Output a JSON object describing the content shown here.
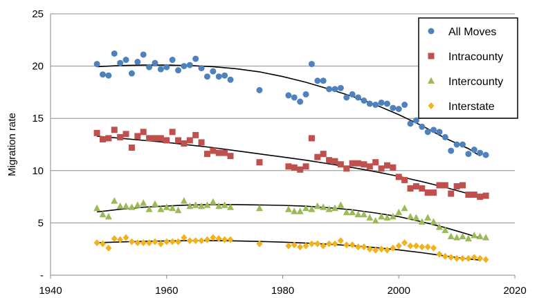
{
  "chart_data": {
    "type": "scatter",
    "title": "",
    "xlabel": "",
    "ylabel": "Migration rate",
    "xlim": [
      1940,
      2020
    ],
    "ylim": [
      0,
      25
    ],
    "xticks": [
      1940,
      1960,
      1980,
      2000,
      2020
    ],
    "yticks": [
      0,
      5,
      10,
      15,
      20,
      25
    ],
    "ytick_labels": [
      "-",
      "5",
      "10",
      "15",
      "20",
      "25"
    ],
    "grid": "horizontal",
    "legend_position": "top-right",
    "trendlines": true,
    "series": [
      {
        "name": "All Moves",
        "color": "#4f81bd",
        "marker": "circle",
        "points": [
          [
            1948,
            20.2
          ],
          [
            1949,
            19.2
          ],
          [
            1950,
            19.1
          ],
          [
            1951,
            21.2
          ],
          [
            1952,
            20.3
          ],
          [
            1953,
            20.6
          ],
          [
            1954,
            19.3
          ],
          [
            1955,
            20.4
          ],
          [
            1956,
            21.1
          ],
          [
            1957,
            19.9
          ],
          [
            1958,
            20.3
          ],
          [
            1959,
            19.7
          ],
          [
            1960,
            19.9
          ],
          [
            1961,
            20.6
          ],
          [
            1962,
            19.6
          ],
          [
            1963,
            20.0
          ],
          [
            1964,
            20.1
          ],
          [
            1965,
            20.7
          ],
          [
            1966,
            19.8
          ],
          [
            1967,
            19.0
          ],
          [
            1968,
            19.5
          ],
          [
            1969,
            19.0
          ],
          [
            1970,
            19.1
          ],
          [
            1971,
            18.7
          ],
          [
            1976,
            17.7
          ],
          [
            1981,
            17.2
          ],
          [
            1982,
            17.0
          ],
          [
            1983,
            16.6
          ],
          [
            1984,
            17.3
          ],
          [
            1985,
            20.2
          ],
          [
            1986,
            18.6
          ],
          [
            1987,
            18.6
          ],
          [
            1988,
            17.8
          ],
          [
            1989,
            17.8
          ],
          [
            1990,
            17.9
          ],
          [
            1991,
            17.0
          ],
          [
            1992,
            17.3
          ],
          [
            1993,
            17.0
          ],
          [
            1994,
            16.7
          ],
          [
            1995,
            16.4
          ],
          [
            1996,
            16.3
          ],
          [
            1997,
            16.5
          ],
          [
            1998,
            16.4
          ],
          [
            1999,
            16.0
          ],
          [
            2000,
            15.9
          ],
          [
            2001,
            16.3
          ],
          [
            2002,
            14.5
          ],
          [
            2003,
            14.8
          ],
          [
            2004,
            14.2
          ],
          [
            2005,
            13.7
          ],
          [
            2006,
            13.9
          ],
          [
            2007,
            13.7
          ],
          [
            2008,
            13.2
          ],
          [
            2009,
            11.9
          ],
          [
            2010,
            12.5
          ],
          [
            2011,
            12.5
          ],
          [
            2012,
            11.6
          ],
          [
            2013,
            12.0
          ],
          [
            2014,
            11.7
          ],
          [
            2015,
            11.5
          ]
        ],
        "trend": [
          [
            1948,
            19.95
          ],
          [
            1952,
            20.05
          ],
          [
            1956,
            20.1
          ],
          [
            1960,
            20.1
          ],
          [
            1964,
            20.05
          ],
          [
            1968,
            19.95
          ],
          [
            1972,
            19.75
          ],
          [
            1976,
            19.45
          ],
          [
            1980,
            19.0
          ],
          [
            1984,
            18.45
          ],
          [
            1988,
            17.8
          ],
          [
            1992,
            17.1
          ],
          [
            1996,
            16.3
          ],
          [
            2000,
            15.35
          ],
          [
            2004,
            14.3
          ],
          [
            2008,
            13.1
          ],
          [
            2012,
            12.1
          ],
          [
            2014,
            11.4
          ]
        ]
      },
      {
        "name": "Intracounty",
        "color": "#c0504d",
        "marker": "square",
        "points": [
          [
            1948,
            13.6
          ],
          [
            1949,
            13.0
          ],
          [
            1950,
            13.1
          ],
          [
            1951,
            13.9
          ],
          [
            1952,
            13.2
          ],
          [
            1953,
            13.5
          ],
          [
            1954,
            12.2
          ],
          [
            1955,
            13.3
          ],
          [
            1956,
            13.7
          ],
          [
            1957,
            13.1
          ],
          [
            1958,
            13.1
          ],
          [
            1959,
            13.1
          ],
          [
            1960,
            12.9
          ],
          [
            1961,
            13.7
          ],
          [
            1962,
            12.9
          ],
          [
            1963,
            12.6
          ],
          [
            1964,
            12.9
          ],
          [
            1965,
            13.4
          ],
          [
            1966,
            12.7
          ],
          [
            1967,
            11.6
          ],
          [
            1968,
            11.9
          ],
          [
            1969,
            11.7
          ],
          [
            1970,
            11.7
          ],
          [
            1971,
            11.4
          ],
          [
            1976,
            10.8
          ],
          [
            1981,
            10.4
          ],
          [
            1982,
            10.3
          ],
          [
            1983,
            10.1
          ],
          [
            1984,
            10.4
          ],
          [
            1985,
            13.1
          ],
          [
            1986,
            11.3
          ],
          [
            1987,
            11.6
          ],
          [
            1988,
            11.0
          ],
          [
            1989,
            10.9
          ],
          [
            1990,
            10.6
          ],
          [
            1991,
            10.2
          ],
          [
            1992,
            10.7
          ],
          [
            1993,
            10.7
          ],
          [
            1994,
            10.6
          ],
          [
            1995,
            10.4
          ],
          [
            1996,
            10.8
          ],
          [
            1997,
            10.2
          ],
          [
            1998,
            10.5
          ],
          [
            1999,
            10.3
          ],
          [
            2000,
            9.4
          ],
          [
            2001,
            9.1
          ],
          [
            2002,
            8.3
          ],
          [
            2003,
            8.5
          ],
          [
            2004,
            8.3
          ],
          [
            2005,
            7.9
          ],
          [
            2006,
            7.9
          ],
          [
            2007,
            8.6
          ],
          [
            2008,
            8.6
          ],
          [
            2009,
            7.8
          ],
          [
            2010,
            8.5
          ],
          [
            2011,
            8.6
          ],
          [
            2012,
            7.7
          ],
          [
            2013,
            7.7
          ],
          [
            2014,
            7.5
          ],
          [
            2015,
            7.6
          ]
        ],
        "trend": [
          [
            1948,
            13.3
          ],
          [
            1952,
            13.1
          ],
          [
            1956,
            12.9
          ],
          [
            1960,
            12.7
          ],
          [
            1964,
            12.45
          ],
          [
            1968,
            12.2
          ],
          [
            1972,
            11.9
          ],
          [
            1976,
            11.6
          ],
          [
            1980,
            11.3
          ],
          [
            1984,
            11.0
          ],
          [
            1988,
            10.65
          ],
          [
            1992,
            10.3
          ],
          [
            1996,
            9.9
          ],
          [
            2000,
            9.45
          ],
          [
            2004,
            8.95
          ],
          [
            2008,
            8.4
          ],
          [
            2012,
            7.8
          ],
          [
            2014,
            7.45
          ]
        ]
      },
      {
        "name": "Intercounty",
        "color": "#9bbb59",
        "marker": "triangle",
        "points": [
          [
            1948,
            6.4
          ],
          [
            1949,
            5.8
          ],
          [
            1950,
            5.6
          ],
          [
            1951,
            7.1
          ],
          [
            1952,
            6.6
          ],
          [
            1953,
            6.6
          ],
          [
            1954,
            6.5
          ],
          [
            1955,
            6.7
          ],
          [
            1956,
            6.9
          ],
          [
            1957,
            6.3
          ],
          [
            1958,
            6.8
          ],
          [
            1959,
            6.3
          ],
          [
            1960,
            6.5
          ],
          [
            1961,
            6.4
          ],
          [
            1962,
            6.2
          ],
          [
            1963,
            7.1
          ],
          [
            1964,
            6.6
          ],
          [
            1965,
            6.7
          ],
          [
            1966,
            6.6
          ],
          [
            1967,
            6.7
          ],
          [
            1968,
            7.0
          ],
          [
            1969,
            6.6
          ],
          [
            1970,
            6.7
          ],
          [
            1971,
            6.5
          ],
          [
            1976,
            6.4
          ],
          [
            1981,
            6.3
          ],
          [
            1982,
            6.1
          ],
          [
            1983,
            6.1
          ],
          [
            1984,
            6.4
          ],
          [
            1985,
            6.3
          ],
          [
            1986,
            6.6
          ],
          [
            1987,
            6.5
          ],
          [
            1988,
            6.3
          ],
          [
            1989,
            6.4
          ],
          [
            1990,
            6.7
          ],
          [
            1991,
            6.0
          ],
          [
            1992,
            6.0
          ],
          [
            1993,
            5.8
          ],
          [
            1994,
            5.8
          ],
          [
            1995,
            5.5
          ],
          [
            1996,
            5.2
          ],
          [
            1997,
            5.6
          ],
          [
            1998,
            5.5
          ],
          [
            1999,
            5.6
          ],
          [
            2000,
            6.0
          ],
          [
            2001,
            6.4
          ],
          [
            2002,
            5.6
          ],
          [
            2003,
            5.5
          ],
          [
            2004,
            5.1
          ],
          [
            2005,
            5.5
          ],
          [
            2006,
            5.1
          ],
          [
            2007,
            4.6
          ],
          [
            2008,
            4.3
          ],
          [
            2009,
            3.7
          ],
          [
            2010,
            3.6
          ],
          [
            2011,
            3.7
          ],
          [
            2012,
            3.5
          ],
          [
            2013,
            3.8
          ],
          [
            2014,
            3.7
          ],
          [
            2015,
            3.6
          ]
        ],
        "trend": [
          [
            1948,
            6.05
          ],
          [
            1952,
            6.3
          ],
          [
            1956,
            6.5
          ],
          [
            1960,
            6.62
          ],
          [
            1964,
            6.72
          ],
          [
            1968,
            6.75
          ],
          [
            1972,
            6.75
          ],
          [
            1976,
            6.72
          ],
          [
            1980,
            6.68
          ],
          [
            1984,
            6.6
          ],
          [
            1988,
            6.45
          ],
          [
            1992,
            6.25
          ],
          [
            1996,
            5.95
          ],
          [
            2000,
            5.6
          ],
          [
            2004,
            5.1
          ],
          [
            2008,
            4.55
          ],
          [
            2012,
            3.9
          ],
          [
            2014,
            3.55
          ]
        ]
      },
      {
        "name": "Interstate",
        "color": "#f2b21e",
        "marker": "diamond",
        "points": [
          [
            1948,
            3.1
          ],
          [
            1949,
            3.0
          ],
          [
            1950,
            2.6
          ],
          [
            1951,
            3.5
          ],
          [
            1952,
            3.4
          ],
          [
            1953,
            3.6
          ],
          [
            1954,
            3.2
          ],
          [
            1955,
            3.1
          ],
          [
            1956,
            3.1
          ],
          [
            1957,
            3.1
          ],
          [
            1958,
            3.2
          ],
          [
            1959,
            3.0
          ],
          [
            1960,
            3.2
          ],
          [
            1961,
            3.2
          ],
          [
            1962,
            3.2
          ],
          [
            1963,
            3.6
          ],
          [
            1964,
            3.3
          ],
          [
            1965,
            3.3
          ],
          [
            1966,
            3.3
          ],
          [
            1967,
            3.4
          ],
          [
            1968,
            3.6
          ],
          [
            1969,
            3.5
          ],
          [
            1970,
            3.4
          ],
          [
            1971,
            3.4
          ],
          [
            1976,
            3.0
          ],
          [
            1981,
            2.8
          ],
          [
            1982,
            2.9
          ],
          [
            1983,
            2.7
          ],
          [
            1984,
            2.8
          ],
          [
            1985,
            3.0
          ],
          [
            1986,
            3.0
          ],
          [
            1987,
            2.8
          ],
          [
            1988,
            3.0
          ],
          [
            1989,
            3.0
          ],
          [
            1990,
            3.3
          ],
          [
            1991,
            2.9
          ],
          [
            1992,
            2.9
          ],
          [
            1993,
            2.7
          ],
          [
            1994,
            2.7
          ],
          [
            1995,
            2.5
          ],
          [
            1996,
            2.4
          ],
          [
            1997,
            2.5
          ],
          [
            1998,
            2.4
          ],
          [
            1999,
            2.6
          ],
          [
            2000,
            2.8
          ],
          [
            2001,
            3.1
          ],
          [
            2002,
            2.8
          ],
          [
            2003,
            2.8
          ],
          [
            2004,
            2.7
          ],
          [
            2005,
            2.7
          ],
          [
            2006,
            2.6
          ],
          [
            2007,
            2.0
          ],
          [
            2008,
            1.8
          ],
          [
            2009,
            1.7
          ],
          [
            2010,
            1.6
          ],
          [
            2011,
            1.6
          ],
          [
            2012,
            1.6
          ],
          [
            2013,
            1.7
          ],
          [
            2014,
            1.6
          ],
          [
            2015,
            1.5
          ]
        ],
        "trend": [
          [
            1948,
            3.1
          ],
          [
            1952,
            3.18
          ],
          [
            1956,
            3.24
          ],
          [
            1960,
            3.28
          ],
          [
            1964,
            3.3
          ],
          [
            1968,
            3.3
          ],
          [
            1972,
            3.28
          ],
          [
            1976,
            3.23
          ],
          [
            1980,
            3.16
          ],
          [
            1984,
            3.07
          ],
          [
            1988,
            2.96
          ],
          [
            1992,
            2.82
          ],
          [
            1996,
            2.64
          ],
          [
            2000,
            2.42
          ],
          [
            2004,
            2.15
          ],
          [
            2008,
            1.84
          ],
          [
            2012,
            1.55
          ],
          [
            2014,
            1.45
          ]
        ]
      }
    ]
  }
}
